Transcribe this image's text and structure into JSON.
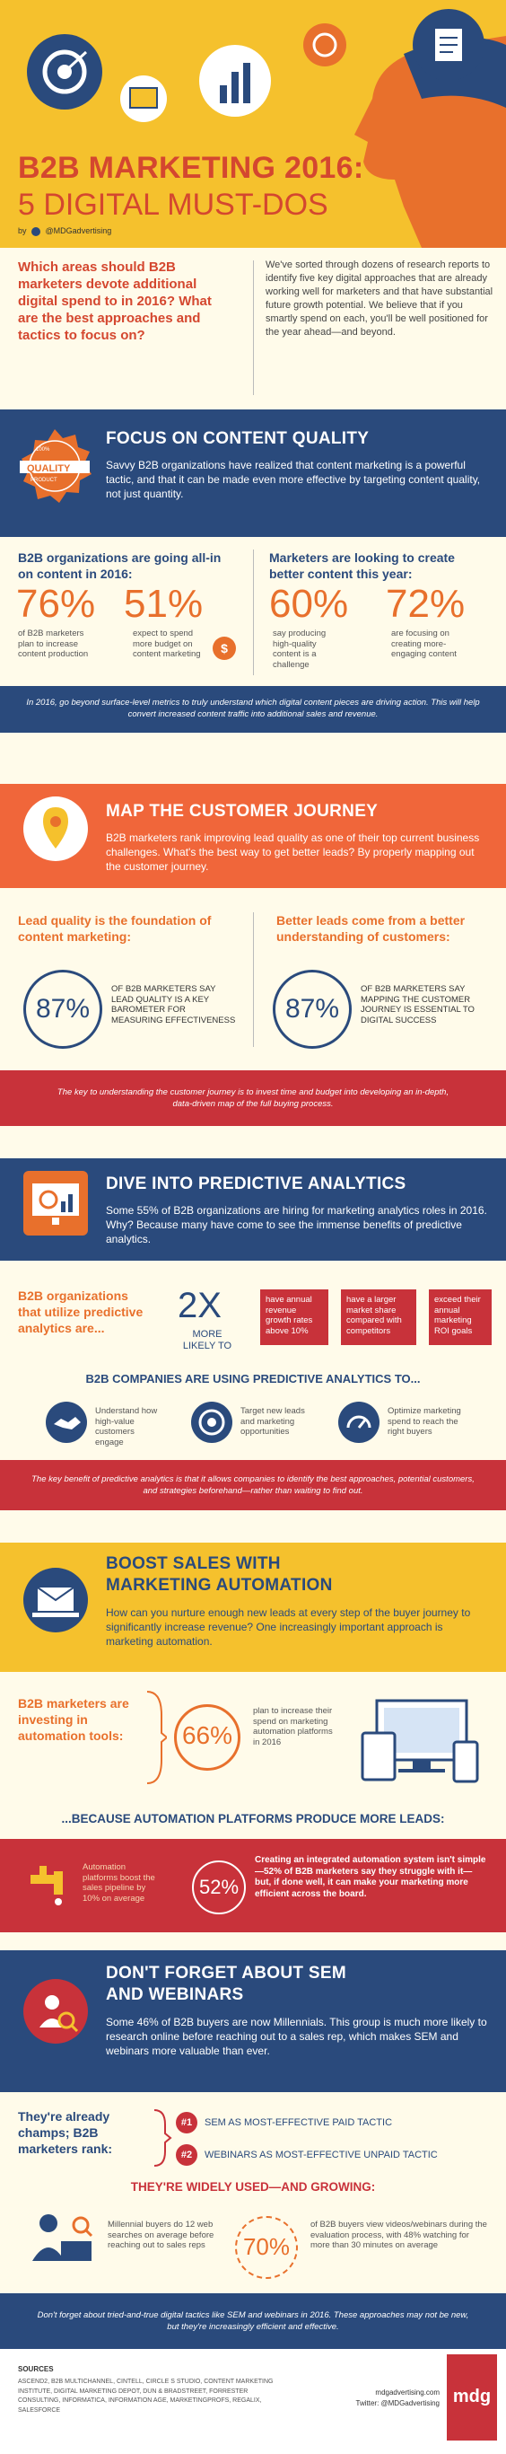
{
  "header": {
    "title_line1": "B2B MARKETING 2016:",
    "title_line2": "5 DIGITAL MUST-DOS",
    "by": "by",
    "handle": "@MDGadvertising"
  },
  "intro": {
    "question": "Which areas should B2B marketers devote additional digital spend to in 2016? What are the best approaches and tactics to focus on?",
    "paragraph": "We've sorted through dozens of research reports to identify five key digital approaches that are already working well for marketers and that have substantial future growth potential. We believe that if you smartly spend on each, you'll be well positioned for the year ahead—and beyond."
  },
  "content_quality": {
    "title": "FOCUS ON CONTENT QUALITY",
    "badge_top": "100%",
    "badge_mid": "QUALITY",
    "badge_bottom": "PRODUCT",
    "body": "Savvy B2B organizations have realized that content marketing is a powerful tactic, and that it can be made even more effective by targeting content quality, not just quantity.",
    "left_heading": "B2B organizations are going all-in on content in 2016:",
    "right_heading": "Marketers are looking to create better content this year:",
    "stats": [
      {
        "value": "76%",
        "desc": "of B2B marketers plan to increase content production"
      },
      {
        "value": "51%",
        "desc": "expect to spend more budget on content marketing"
      },
      {
        "value": "60%",
        "desc": "say producing high-quality content is a challenge"
      },
      {
        "value": "72%",
        "desc": "are focusing on creating more-engaging content"
      }
    ],
    "note": "In 2016, go beyond surface-level metrics to truly understand which digital content pieces are driving action. This will help convert increased content traffic into additional sales and revenue."
  },
  "customer_journey": {
    "title": "MAP THE CUSTOMER JOURNEY",
    "body": "B2B marketers rank improving lead quality as one of their top current business challenges. What's the best way to get better leads? By properly mapping out the customer journey.",
    "left_heading": "Lead quality is the foundation of content marketing:",
    "right_heading": "Better leads come from a better understanding of customers:",
    "left_value": "87%",
    "left_desc": "OF B2B MARKETERS SAY LEAD QUALITY IS A KEY BAROMETER FOR MEASURING EFFECTIVENESS",
    "right_value": "87%",
    "right_desc": "OF B2B MARKETERS SAY MAPPING THE CUSTOMER JOURNEY IS ESSENTIAL TO DIGITAL SUCCESS",
    "note": "The key to understanding the customer journey is to invest time and budget into developing an in-depth, data-driven map of the full buying process."
  },
  "predictive": {
    "title": "DIVE INTO PREDICTIVE ANALYTICS",
    "body": "Some 55% of B2B organizations are hiring for marketing analytics roles in 2016. Why? Because many have come to see the immense benefits of predictive analytics.",
    "left_heading": "B2B organizations that utilize predictive analytics are...",
    "multiplier": "2X",
    "multiplier_label": "MORE LIKELY TO",
    "boxes": [
      "have annual revenue growth rates above 10%",
      "have a larger market share compared with competitors",
      "exceed their annual marketing ROI goals"
    ],
    "uses_heading": "B2B COMPANIES ARE USING PREDICTIVE ANALYTICS TO...",
    "uses": [
      "Understand how high-value customers engage",
      "Target new leads and marketing opportunities",
      "Optimize marketing spend to reach the right buyers"
    ],
    "note": "The key benefit of predictive analytics is that it allows companies to identify the best approaches, potential customers, and strategies beforehand—rather than waiting to find out."
  },
  "automation": {
    "title_line1": "BOOST SALES WITH",
    "title_line2": "MARKETING AUTOMATION",
    "body": "How can you nurture enough new leads at every step of the buyer journey to significantly increase revenue? One increasingly important approach is marketing automation.",
    "left_heading": "B2B marketers are investing in automation tools:",
    "value": "66%",
    "desc": "plan to increase their spend on marketing automation platforms in 2016",
    "because_heading": "...BECAUSE AUTOMATION PLATFORMS PRODUCE MORE LEADS:",
    "pipeline_text": "Automation platforms boost the sales pipeline by 10% on average",
    "struggle_value": "52%",
    "struggle_text": "Creating an integrated automation system isn't simple—52% of B2B marketers say they struggle with it—but, if done well, it can make your marketing more efficient across the board."
  },
  "sem": {
    "title_line1": "DON'T FORGET ABOUT SEM",
    "title_line2": "AND WEBINARS",
    "body": "Some 46% of B2B buyers are now Millennials. This group is much more likely to research online before reaching out to a sales rep, which makes SEM and webinars more valuable than ever.",
    "left_heading": "They're already champs; B2B marketers rank:",
    "ranks": [
      {
        "num": "#1",
        "text": "SEM AS MOST-EFFECTIVE PAID TACTIC"
      },
      {
        "num": "#2",
        "text": "WEBINARS AS MOST-EFFECTIVE UNPAID TACTIC"
      }
    ],
    "used_heading": "THEY'RE WIDELY USED—AND GROWING:",
    "millennial_text": "Millennial buyers do 12 web searches on average before reaching out to sales reps",
    "value": "70%",
    "webinar_text": "of B2B buyers view videos/webinars during the evaluation process, with 48% watching for more than 30 minutes on average",
    "note": "Don't forget about tried-and-true digital tactics like SEM and webinars in 2016. These approaches may not be new, but they're increasingly efficient and effective."
  },
  "footer": {
    "sources_heading": "SOURCES",
    "sources": "ASCEND2, B2B MULTICHANNEL, CINTELL, CIRCLE S STUDIO, CONTENT MARKETING INSTITUTE, DIGITAL MARKETING DEPOT, DUN & BRADSTREET, FORRESTER CONSULTING, INFORMATICA, INFORMATION AGE, MARKETINGPROFS, REGALIX, SALESFORCE",
    "site": "mdgadvertising.com",
    "twitter": "Twitter: @MDGadvertising",
    "logo": "mdg"
  },
  "colors": {
    "navy": "#2a4a7c",
    "orange": "#f0663a",
    "yellow": "#f5c12d",
    "red": "#c8323a",
    "cream": "#fffbea"
  }
}
